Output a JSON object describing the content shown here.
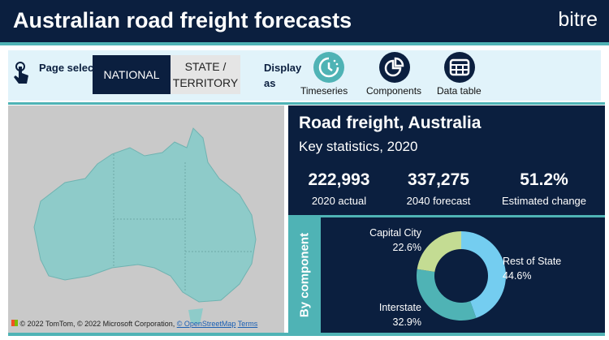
{
  "header": {
    "title": "Australian road freight forecasts",
    "brand": "bitre"
  },
  "toolbar": {
    "page_selections": "Page selections",
    "national": "NATIONAL",
    "state": "STATE / TERRITORY",
    "display_as": "Display as",
    "timeseries": "Timeseries",
    "components": "Components",
    "data_table": "Data table"
  },
  "map": {
    "attribution": "© 2022 TomTom, © 2022 Microsoft Corporation,",
    "osm": "© OpenStreetMap",
    "terms": "Terms"
  },
  "key": {
    "title": "Road freight, Australia",
    "subtitle": "Key statistics, 2020",
    "stats": [
      {
        "value": "222,993",
        "label": "2020 actual"
      },
      {
        "value": "337,275",
        "label": "2040 forecast"
      },
      {
        "value": "51.2%",
        "label": "Estimated change"
      }
    ]
  },
  "component": {
    "side_label": "By component"
  },
  "chart_data": {
    "type": "pie",
    "title": "By component",
    "donut": true,
    "slices": [
      {
        "name": "Rest of State",
        "value": 44.6,
        "label": "44.6%",
        "color": "#74cdf0"
      },
      {
        "name": "Interstate",
        "value": 32.9,
        "label": "32.9%",
        "color": "#4fb3b5"
      },
      {
        "name": "Capital City",
        "value": 22.6,
        "label": "22.6%",
        "color": "#c4dc93"
      }
    ]
  }
}
